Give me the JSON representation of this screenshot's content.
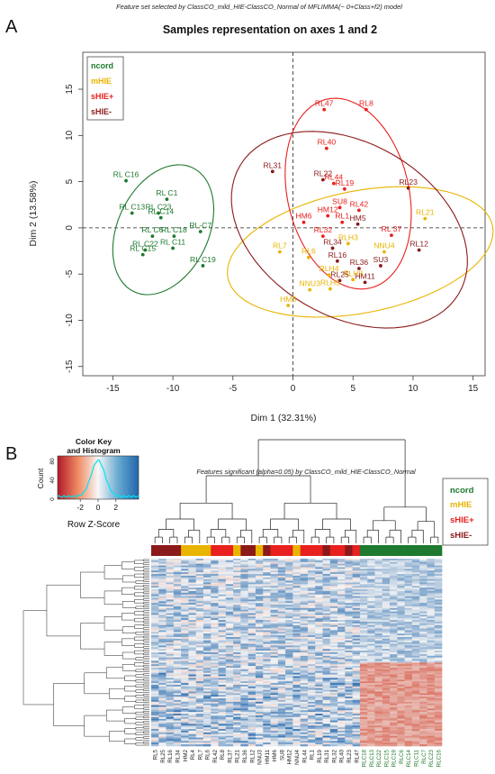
{
  "panel_a": {
    "letter": "A",
    "caption": "Feature set selected by ClassCO_mild_HIE-ClassCO_Normal of MFLIMMA(~ 0+Class+f2) model",
    "title": "Samples representation on axes 1 and 2"
  },
  "panel_b": {
    "letter": "B",
    "caption": "Features significant (alpha=0.05) by ClassCO_mild_HIE-ClassCO_Normal",
    "color_key_title_1": "Color Key",
    "color_key_title_2": "and Histogram",
    "color_key_xlabel": "Row Z-Score",
    "color_key_ylabel": "Count",
    "color_key_ticks": [
      "-2",
      "0",
      "2"
    ],
    "color_key_yticks": [
      "0",
      "40",
      "80"
    ]
  },
  "colors": {
    "ncord": "#1e7a2e",
    "mHIE": "#e8b400",
    "sHIE_plus": "#e8201e",
    "sHIE_minus": "#8b1a1a",
    "heat_low": "#2166ac",
    "heat_mid": "#f4f4f4",
    "heat_high": "#d6604d",
    "hist_line": "#00e5ee"
  },
  "chart_data": [
    {
      "type": "scatter",
      "title": "Samples representation on axes 1 and 2",
      "xlabel": "Dim 1 (32.31%)",
      "ylabel": "Dim 2 (13.58%)",
      "xlim": [
        -17.5,
        16
      ],
      "ylim": [
        -16,
        19
      ],
      "xticks": [
        -15,
        -10,
        -5,
        0,
        5,
        10,
        15
      ],
      "yticks": [
        -15,
        -10,
        -5,
        0,
        5,
        10,
        15
      ],
      "grid": false,
      "reference_lines": [
        0,
        0
      ],
      "legend_position": "top-left",
      "legend": [
        {
          "label": "ncord",
          "color_key": "ncord"
        },
        {
          "label": "mHIE",
          "color_key": "mHIE"
        },
        {
          "label": "sHIE+",
          "color_key": "sHIE_plus"
        },
        {
          "label": "sHIE-",
          "color_key": "sHIE_minus"
        }
      ],
      "series": [
        {
          "name": "ncord",
          "color_key": "ncord",
          "points": [
            {
              "label": "RL C16",
              "x": -13.9,
              "y": 5.1
            },
            {
              "label": "RL C1",
              "x": -10.5,
              "y": 3.1
            },
            {
              "label": "RL C23",
              "x": -11.2,
              "y": 1.6
            },
            {
              "label": "RL C14",
              "x": -11.0,
              "y": 1.1
            },
            {
              "label": "RL C13",
              "x": -13.4,
              "y": 1.6
            },
            {
              "label": "RL-C7",
              "x": -7.7,
              "y": -0.4
            },
            {
              "label": "RL C6",
              "x": -11.7,
              "y": -0.9
            },
            {
              "label": "RL C18",
              "x": -9.9,
              "y": -0.9
            },
            {
              "label": "RL C11",
              "x": -10.0,
              "y": -2.2
            },
            {
              "label": "RL C22",
              "x": -12.3,
              "y": -2.4
            },
            {
              "label": "RL C15",
              "x": -12.5,
              "y": -2.9
            },
            {
              "label": "RL C19",
              "x": -7.5,
              "y": -4.1
            }
          ],
          "ellipse": {
            "cx": -10.8,
            "cy": -0.2,
            "rx": 3.9,
            "ry": 7.2,
            "angle_deg": -15
          }
        },
        {
          "name": "mHIE",
          "color_key": "mHIE",
          "points": [
            {
              "label": "RL21",
              "x": 11.0,
              "y": 1.0
            },
            {
              "label": "NNU4",
              "x": 7.6,
              "y": -2.6
            },
            {
              "label": "RL7",
              "x": -1.1,
              "y": -2.6
            },
            {
              "label": "RL6",
              "x": 1.3,
              "y": -3.2
            },
            {
              "label": "RLH3",
              "x": 4.6,
              "y": -1.7
            },
            {
              "label": "RLH4",
              "x": 3.0,
              "y": -5.1
            },
            {
              "label": "NNU3",
              "x": 1.4,
              "y": -6.7
            },
            {
              "label": "RLH5",
              "x": 3.1,
              "y": -6.6
            },
            {
              "label": "HM3",
              "x": -0.4,
              "y": -8.4
            },
            {
              "label": "RLH8",
              "x": 5.0,
              "y": -5.6
            }
          ],
          "ellipse": {
            "cx": 5.6,
            "cy": -2.6,
            "rx": 11.4,
            "ry": 6.5,
            "angle_deg": 17
          }
        },
        {
          "name": "sHIE+",
          "color_key": "sHIE_plus",
          "points": [
            {
              "label": "RL47",
              "x": 2.6,
              "y": 12.8
            },
            {
              "label": "RL8",
              "x": 6.1,
              "y": 12.8
            },
            {
              "label": "RL40",
              "x": 2.8,
              "y": 8.6
            },
            {
              "label": "RL44",
              "x": 3.4,
              "y": 4.8
            },
            {
              "label": "RL19",
              "x": 4.3,
              "y": 4.2
            },
            {
              "label": "SU8",
              "x": 3.9,
              "y": 2.2
            },
            {
              "label": "RL42",
              "x": 5.5,
              "y": 1.9
            },
            {
              "label": "HM12",
              "x": 2.9,
              "y": 1.3
            },
            {
              "label": "HM6",
              "x": 0.9,
              "y": 0.6
            },
            {
              "label": "RL1",
              "x": 4.1,
              "y": 0.6
            },
            {
              "label": "RL32",
              "x": 2.5,
              "y": -0.9
            },
            {
              "label": "RL 37",
              "x": 8.2,
              "y": -0.8
            }
          ],
          "ellipse": {
            "cx": 4.6,
            "cy": 3.7,
            "rx": 5.1,
            "ry": 10.4,
            "angle_deg": 8
          }
        },
        {
          "name": "sHIE-",
          "color_key": "sHIE_minus",
          "points": [
            {
              "label": "RL31",
              "x": -1.7,
              "y": 6.1
            },
            {
              "label": "RL22",
              "x": 2.5,
              "y": 5.2
            },
            {
              "label": "RL23",
              "x": 9.6,
              "y": 4.3
            },
            {
              "label": "HM5",
              "x": 5.4,
              "y": 0.4
            },
            {
              "label": "RL34",
              "x": 3.3,
              "y": -2.2
            },
            {
              "label": "RL12",
              "x": 10.5,
              "y": -2.4
            },
            {
              "label": "RL16",
              "x": 3.7,
              "y": -3.6
            },
            {
              "label": "RL36",
              "x": 5.5,
              "y": -4.4
            },
            {
              "label": "SU3",
              "x": 7.3,
              "y": -4.1
            },
            {
              "label": "RL25",
              "x": 3.9,
              "y": -5.7
            },
            {
              "label": "HM11",
              "x": 6.0,
              "y": -5.9
            }
          ],
          "ellipse": {
            "cx": 4.7,
            "cy": -0.2,
            "rx": 8.4,
            "ry": 11.8,
            "angle_deg": 38
          }
        }
      ]
    },
    {
      "type": "heatmap",
      "title": "Features significant (alpha=0.05) by ClassCO_mild_HIE-ClassCO_Normal",
      "legend_position": "top-right",
      "legend": [
        {
          "label": "ncord",
          "color_key": "ncord"
        },
        {
          "label": "mHIE",
          "color_key": "mHIE"
        },
        {
          "label": "sHIE+",
          "color_key": "sHIE_plus"
        },
        {
          "label": "sHIE-",
          "color_key": "sHIE_minus"
        }
      ],
      "columns": [
        "RL5",
        "RL25",
        "RL16",
        "RL34",
        "HM2",
        "RL4",
        "RL7",
        "RL6",
        "RL42",
        "RL8",
        "RL37",
        "RL21",
        "RL36",
        "RL12",
        "NNU3",
        "HM11",
        "HM6",
        "SU8",
        "HM12",
        "NNU4",
        "RL44",
        "RL1",
        "RL19",
        "RL31",
        "RL32",
        "RL40",
        "RL23",
        "RL47",
        "RLC18",
        "RLC13",
        "RLC22",
        "RLC15",
        "RLC19",
        "RLC6",
        "RLC14",
        "RLC11",
        "RLC7",
        "RLC23",
        "RLC16"
      ],
      "column_groups": [
        "sHIE_minus",
        "sHIE_minus",
        "sHIE_minus",
        "sHIE_minus",
        "mHIE",
        "mHIE",
        "mHIE",
        "mHIE",
        "sHIE_plus",
        "sHIE_plus",
        "sHIE_plus",
        "mHIE",
        "sHIE_minus",
        "sHIE_minus",
        "mHIE",
        "sHIE_minus",
        "sHIE_plus",
        "sHIE_plus",
        "sHIE_plus",
        "mHIE",
        "sHIE_plus",
        "sHIE_plus",
        "sHIE_plus",
        "sHIE_minus",
        "sHIE_plus",
        "sHIE_plus",
        "sHIE_minus",
        "sHIE_plus",
        "ncord",
        "ncord",
        "ncord",
        "ncord",
        "ncord",
        "ncord",
        "ncord",
        "ncord",
        "ncord",
        "ncord",
        "ncord"
      ],
      "rows": 110,
      "pattern": "Row Z-scores: the ncord columns (right) are elevated (red) in the lower rows and reduced (blue) in the upper rows; the HIE columns are mixed, mostly light blue."
    }
  ]
}
